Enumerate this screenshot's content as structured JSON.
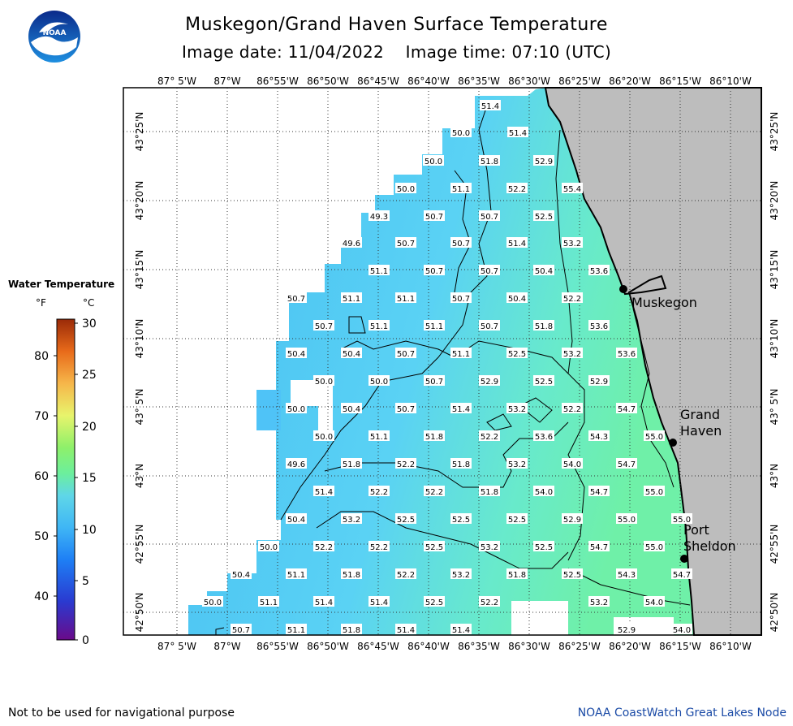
{
  "title": "Muskegon/Grand Haven Surface Temperature",
  "subtitle": "Image date: 11/04/2022    Image time: 07:10 (UTC)",
  "logo_text": "NOAA",
  "legend": {
    "title": "Water Temperature",
    "unit_f": "°F",
    "unit_c": "°C",
    "f_ticks": [
      "80",
      "70",
      "60",
      "50",
      "40"
    ],
    "c_ticks": [
      "30",
      "25",
      "20",
      "15",
      "10",
      "5",
      "0"
    ]
  },
  "lon_labels": [
    "87° 5'W",
    "87°W",
    "86°55'W",
    "86°50'W",
    "86°45'W",
    "86°40'W",
    "86°35'W",
    "86°30'W",
    "86°25'W",
    "86°20'W",
    "86°15'W",
    "86°10'W"
  ],
  "lat_labels": [
    "43°25'N",
    "43°20'N",
    "43°15'N",
    "43°10'N",
    "43° 5'N",
    "43°N",
    "42°55'N",
    "42°50'N"
  ],
  "places": [
    {
      "name": "Muskegon"
    },
    {
      "name": "Grand\nHaven"
    },
    {
      "name": "Port\nSheldon"
    }
  ],
  "temps": [
    [
      "51.4"
    ],
    [
      "50.0",
      "51.4"
    ],
    [
      "50.0",
      "51.8",
      "52.9"
    ],
    [
      "50.0",
      "51.1",
      "52.2",
      "55.4"
    ],
    [
      "49.3",
      "50.7",
      "50.7",
      "52.5"
    ],
    [
      "49.6",
      "50.7",
      "50.7",
      "51.4",
      "53.2"
    ],
    [
      "51.1",
      "50.7",
      "50.7",
      "50.4",
      "53.6"
    ],
    [
      "50.7",
      "51.1",
      "51.1",
      "50.7",
      "50.4",
      "52.2"
    ],
    [
      "50.7",
      "51.1",
      "51.1",
      "50.7",
      "51.8",
      "53.6"
    ],
    [
      "50.4",
      "50.4",
      "50.7",
      "51.1",
      "52.5",
      "53.2",
      "53.6"
    ],
    [
      "50.0",
      "50.0",
      "50.7",
      "52.9",
      "52.5",
      "52.9"
    ],
    [
      "50.0",
      "50.4",
      "50.7",
      "51.4",
      "53.2",
      "52.2",
      "54.7"
    ],
    [
      "50.0",
      "51.1",
      "51.8",
      "52.2",
      "53.6",
      "54.3",
      "55.0"
    ],
    [
      "49.6",
      "51.8",
      "52.2",
      "51.8",
      "53.2",
      "54.0",
      "54.7"
    ],
    [
      "51.4",
      "52.2",
      "52.2",
      "51.8",
      "54.0",
      "54.7",
      "55.0"
    ],
    [
      "50.4",
      "53.2",
      "52.5",
      "52.5",
      "52.5",
      "52.9",
      "55.0",
      "55.0"
    ],
    [
      "50.0",
      "52.2",
      "52.2",
      "52.5",
      "53.2",
      "52.5",
      "54.7",
      "55.0"
    ],
    [
      "50.4",
      "51.1",
      "51.8",
      "52.2",
      "53.2",
      "51.8",
      "52.5",
      "54.3",
      "54.7"
    ],
    [
      "50.0",
      "51.1",
      "51.4",
      "51.4",
      "52.5",
      "52.2",
      "53.2",
      "54.0"
    ],
    [
      "50.7",
      "51.1",
      "51.8",
      "51.4",
      "51.4",
      "52.9",
      "54.0"
    ]
  ],
  "disclaimer": "Not to be used for navigational purpose",
  "credit": "NOAA CoastWatch Great Lakes Node",
  "colors": {
    "land": "#bdbdbd",
    "water_cool": "#4fc3f7",
    "water_warm": "#66f0b0",
    "credit_text": "#1a4aa6"
  }
}
